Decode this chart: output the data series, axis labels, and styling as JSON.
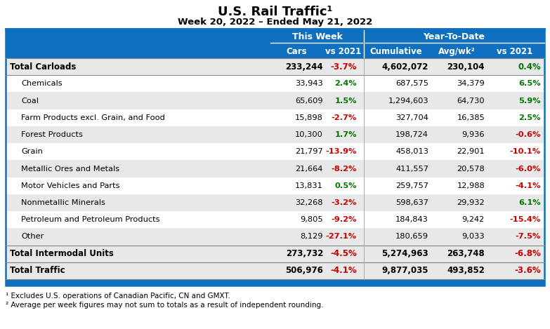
{
  "title": "U.S. Rail Traffic¹",
  "subtitle": "Week 20, 2022 – Ended May 21, 2022",
  "header_group1": "This Week",
  "header_group2": "Year-To-Date",
  "col_headers": [
    "Cars",
    "vs 2021",
    "Cumulative",
    "Avg/wk²",
    "vs 2021"
  ],
  "rows": [
    {
      "label": "Total Carloads",
      "bold": true,
      "indent": false,
      "cars": "233,244",
      "vs2021_tw": "-3.7%",
      "vs2021_tw_color": "#cc0000",
      "cumulative": "4,602,072",
      "avgwk": "230,104",
      "vs2021_ytd": "0.4%",
      "vs2021_ytd_color": "#007700",
      "row_bg": "#e8e8e8"
    },
    {
      "label": "Chemicals",
      "bold": false,
      "indent": true,
      "cars": "33,943",
      "vs2021_tw": "2.4%",
      "vs2021_tw_color": "#007700",
      "cumulative": "687,575",
      "avgwk": "34,379",
      "vs2021_ytd": "6.5%",
      "vs2021_ytd_color": "#007700",
      "row_bg": "#ffffff"
    },
    {
      "label": "Coal",
      "bold": false,
      "indent": true,
      "cars": "65,609",
      "vs2021_tw": "1.5%",
      "vs2021_tw_color": "#007700",
      "cumulative": "1,294,603",
      "avgwk": "64,730",
      "vs2021_ytd": "5.9%",
      "vs2021_ytd_color": "#007700",
      "row_bg": "#e8e8e8"
    },
    {
      "label": "Farm Products excl. Grain, and Food",
      "bold": false,
      "indent": true,
      "cars": "15,898",
      "vs2021_tw": "-2.7%",
      "vs2021_tw_color": "#cc0000",
      "cumulative": "327,704",
      "avgwk": "16,385",
      "vs2021_ytd": "2.5%",
      "vs2021_ytd_color": "#007700",
      "row_bg": "#ffffff"
    },
    {
      "label": "Forest Products",
      "bold": false,
      "indent": true,
      "cars": "10,300",
      "vs2021_tw": "1.7%",
      "vs2021_tw_color": "#007700",
      "cumulative": "198,724",
      "avgwk": "9,936",
      "vs2021_ytd": "-0.6%",
      "vs2021_ytd_color": "#cc0000",
      "row_bg": "#e8e8e8"
    },
    {
      "label": "Grain",
      "bold": false,
      "indent": true,
      "cars": "21,797",
      "vs2021_tw": "-13.9%",
      "vs2021_tw_color": "#cc0000",
      "cumulative": "458,013",
      "avgwk": "22,901",
      "vs2021_ytd": "-10.1%",
      "vs2021_ytd_color": "#cc0000",
      "row_bg": "#ffffff"
    },
    {
      "label": "Metallic Ores and Metals",
      "bold": false,
      "indent": true,
      "cars": "21,664",
      "vs2021_tw": "-8.2%",
      "vs2021_tw_color": "#cc0000",
      "cumulative": "411,557",
      "avgwk": "20,578",
      "vs2021_ytd": "-6.0%",
      "vs2021_ytd_color": "#cc0000",
      "row_bg": "#e8e8e8"
    },
    {
      "label": "Motor Vehicles and Parts",
      "bold": false,
      "indent": true,
      "cars": "13,831",
      "vs2021_tw": "0.5%",
      "vs2021_tw_color": "#007700",
      "cumulative": "259,757",
      "avgwk": "12,988",
      "vs2021_ytd": "-4.1%",
      "vs2021_ytd_color": "#cc0000",
      "row_bg": "#ffffff"
    },
    {
      "label": "Nonmetallic Minerals",
      "bold": false,
      "indent": true,
      "cars": "32,268",
      "vs2021_tw": "-3.2%",
      "vs2021_tw_color": "#cc0000",
      "cumulative": "598,637",
      "avgwk": "29,932",
      "vs2021_ytd": "6.1%",
      "vs2021_ytd_color": "#007700",
      "row_bg": "#e8e8e8"
    },
    {
      "label": "Petroleum and Petroleum Products",
      "bold": false,
      "indent": true,
      "cars": "9,805",
      "vs2021_tw": "-9.2%",
      "vs2021_tw_color": "#cc0000",
      "cumulative": "184,843",
      "avgwk": "9,242",
      "vs2021_ytd": "-15.4%",
      "vs2021_ytd_color": "#cc0000",
      "row_bg": "#ffffff"
    },
    {
      "label": "Other",
      "bold": false,
      "indent": true,
      "cars": "8,129",
      "vs2021_tw": "-27.1%",
      "vs2021_tw_color": "#cc0000",
      "cumulative": "180,659",
      "avgwk": "9,033",
      "vs2021_ytd": "-7.5%",
      "vs2021_ytd_color": "#cc0000",
      "row_bg": "#e8e8e8"
    },
    {
      "label": "Total Intermodal Units",
      "bold": true,
      "indent": false,
      "cars": "273,732",
      "vs2021_tw": "-4.5%",
      "vs2021_tw_color": "#cc0000",
      "cumulative": "5,274,963",
      "avgwk": "263,748",
      "vs2021_ytd": "-6.8%",
      "vs2021_ytd_color": "#cc0000",
      "row_bg": "#e8e8e8"
    },
    {
      "label": "Total Traffic",
      "bold": true,
      "indent": false,
      "cars": "506,976",
      "vs2021_tw": "-4.1%",
      "vs2021_tw_color": "#cc0000",
      "cumulative": "9,877,035",
      "avgwk": "493,852",
      "vs2021_ytd": "-3.6%",
      "vs2021_ytd_color": "#cc0000",
      "row_bg": "#e8e8e8"
    }
  ],
  "footnote1": "¹ Excludes U.S. operations of Canadian Pacific, CN and GMXT.",
  "footnote2": "² Average per week figures may not sum to totals as a result of independent rounding.",
  "header_bg": "#1070c0",
  "header_text": "#ffffff",
  "border_color": "#1070c0"
}
